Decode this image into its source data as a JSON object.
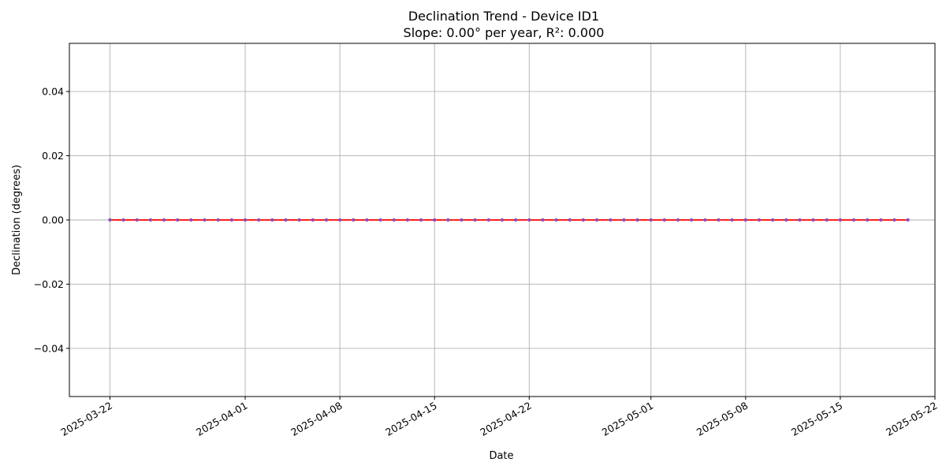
{
  "chart_data": {
    "type": "line",
    "title": "Declination Trend - Device ID1",
    "subtitle": "Slope: 0.00° per year, R²: 0.000",
    "xlabel": "Date",
    "ylabel": "Declination (degrees)",
    "x_range": [
      "2025-03-19",
      "2025-05-22"
    ],
    "ylim": [
      -0.055,
      0.055
    ],
    "x_ticks": [
      "2025-03-22",
      "2025-04-01",
      "2025-04-08",
      "2025-04-15",
      "2025-04-22",
      "2025-05-01",
      "2025-05-08",
      "2025-05-15",
      "2025-05-22"
    ],
    "y_ticks": [
      -0.04,
      -0.02,
      0.0,
      0.02,
      0.04
    ],
    "grid": true,
    "series": [
      {
        "kind": "points",
        "color": "#7f4fbf",
        "start_date": "2025-03-22",
        "end_date": "2025-05-20",
        "y_value": 0.0
      },
      {
        "kind": "trend",
        "color": "#ff0000",
        "x": [
          "2025-03-22",
          "2025-05-20"
        ],
        "y": [
          0.0,
          0.0
        ]
      }
    ]
  }
}
